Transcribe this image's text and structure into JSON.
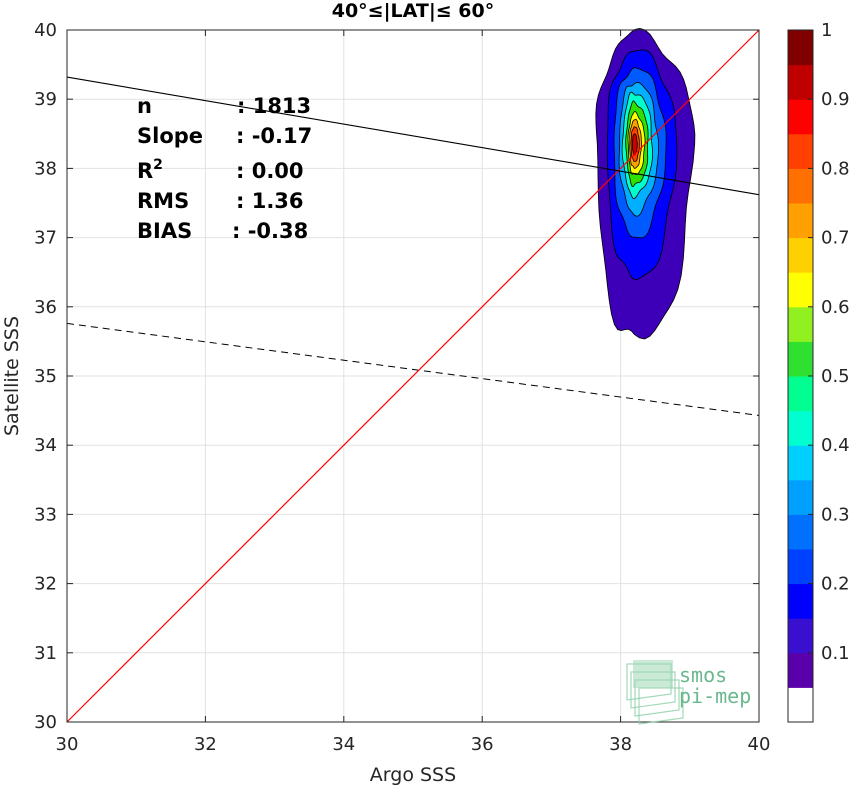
{
  "chart_data": {
    "type": "contour-density-scatter",
    "title": "40°≤|LAT|≤ 60°",
    "xlabel": "Argo SSS",
    "ylabel": "Satellite SSS",
    "xlim": [
      30,
      40
    ],
    "ylim": [
      30,
      40
    ],
    "xticks": [
      "30",
      "32",
      "34",
      "36",
      "38",
      "40"
    ],
    "yticks": [
      "30",
      "31",
      "32",
      "33",
      "34",
      "35",
      "36",
      "37",
      "38",
      "39",
      "40"
    ],
    "grid": true,
    "stats": [
      {
        "label": "n",
        "value": ": 1813"
      },
      {
        "label": "Slope",
        "value": ": -0.17"
      },
      {
        "label": "R",
        "sup": "2",
        "value": ": 0.00"
      },
      {
        "label": "RMS",
        "value": ": 1.36"
      },
      {
        "label": "BIAS",
        "value": ": -0.38"
      }
    ],
    "lines": {
      "identity": {
        "x": [
          30,
          40
        ],
        "y": [
          30,
          40
        ],
        "color": "#ff0000"
      },
      "regression": {
        "x": [
          30,
          40
        ],
        "y": [
          39.32,
          37.62
        ],
        "color": "#000000",
        "style": "solid"
      },
      "dashed": {
        "x": [
          30,
          40
        ],
        "y": [
          35.76,
          34.43
        ],
        "color": "#000000",
        "style": "dashed"
      }
    },
    "density": {
      "center": [
        38.2,
        38.35
      ],
      "levels": [
        {
          "level": 0.05,
          "color": "#3d00b8",
          "rx_left": 0.55,
          "rx_right": 0.85,
          "y_top": 39.95,
          "y_bottom": 35.5
        },
        {
          "level": 0.1,
          "color": "#0000ff",
          "rx_left": 0.4,
          "rx_right": 0.6,
          "y_top": 39.7,
          "y_bottom": 36.4
        },
        {
          "level": 0.2,
          "color": "#005aff",
          "rx_left": 0.3,
          "rx_right": 0.45,
          "y_top": 39.45,
          "y_bottom": 37.0
        },
        {
          "level": 0.3,
          "color": "#00b0ff",
          "rx_left": 0.22,
          "rx_right": 0.34,
          "y_top": 39.25,
          "y_bottom": 37.35
        },
        {
          "level": 0.4,
          "color": "#00ffcc",
          "rx_left": 0.17,
          "rx_right": 0.26,
          "y_top": 39.1,
          "y_bottom": 37.6
        },
        {
          "level": 0.5,
          "color": "#30e000",
          "rx_left": 0.12,
          "rx_right": 0.2,
          "y_top": 38.95,
          "y_bottom": 37.75
        },
        {
          "level": 0.6,
          "color": "#ffff00",
          "rx_left": 0.09,
          "rx_right": 0.15,
          "y_top": 38.8,
          "y_bottom": 37.9
        },
        {
          "level": 0.7,
          "color": "#ffa000",
          "rx_left": 0.07,
          "rx_right": 0.1,
          "y_top": 38.7,
          "y_bottom": 38.0
        },
        {
          "level": 0.8,
          "color": "#ff4000",
          "rx_left": 0.05,
          "rx_right": 0.07,
          "y_top": 38.6,
          "y_bottom": 38.1
        },
        {
          "level": 0.9,
          "color": "#cc0000",
          "rx_left": 0.03,
          "rx_right": 0.04,
          "y_top": 38.5,
          "y_bottom": 38.2
        }
      ]
    },
    "colorbar": {
      "labels": [
        "0.1",
        "0.2",
        "0.3",
        "0.4",
        "0.5",
        "0.6",
        "0.7",
        "0.8",
        "0.9",
        "1"
      ],
      "colors": [
        "#ffffff",
        "#5a00aa",
        "#3a10d0",
        "#0000ff",
        "#0040ff",
        "#0070ff",
        "#00a0ff",
        "#00d0ff",
        "#00ffd0",
        "#00ff90",
        "#30e030",
        "#90f020",
        "#ffff00",
        "#ffd000",
        "#ffa000",
        "#ff7000",
        "#ff4000",
        "#ff0000",
        "#c00000",
        "#800000"
      ]
    },
    "logo": {
      "line1": "smos",
      "line2": "pi-mep"
    }
  }
}
